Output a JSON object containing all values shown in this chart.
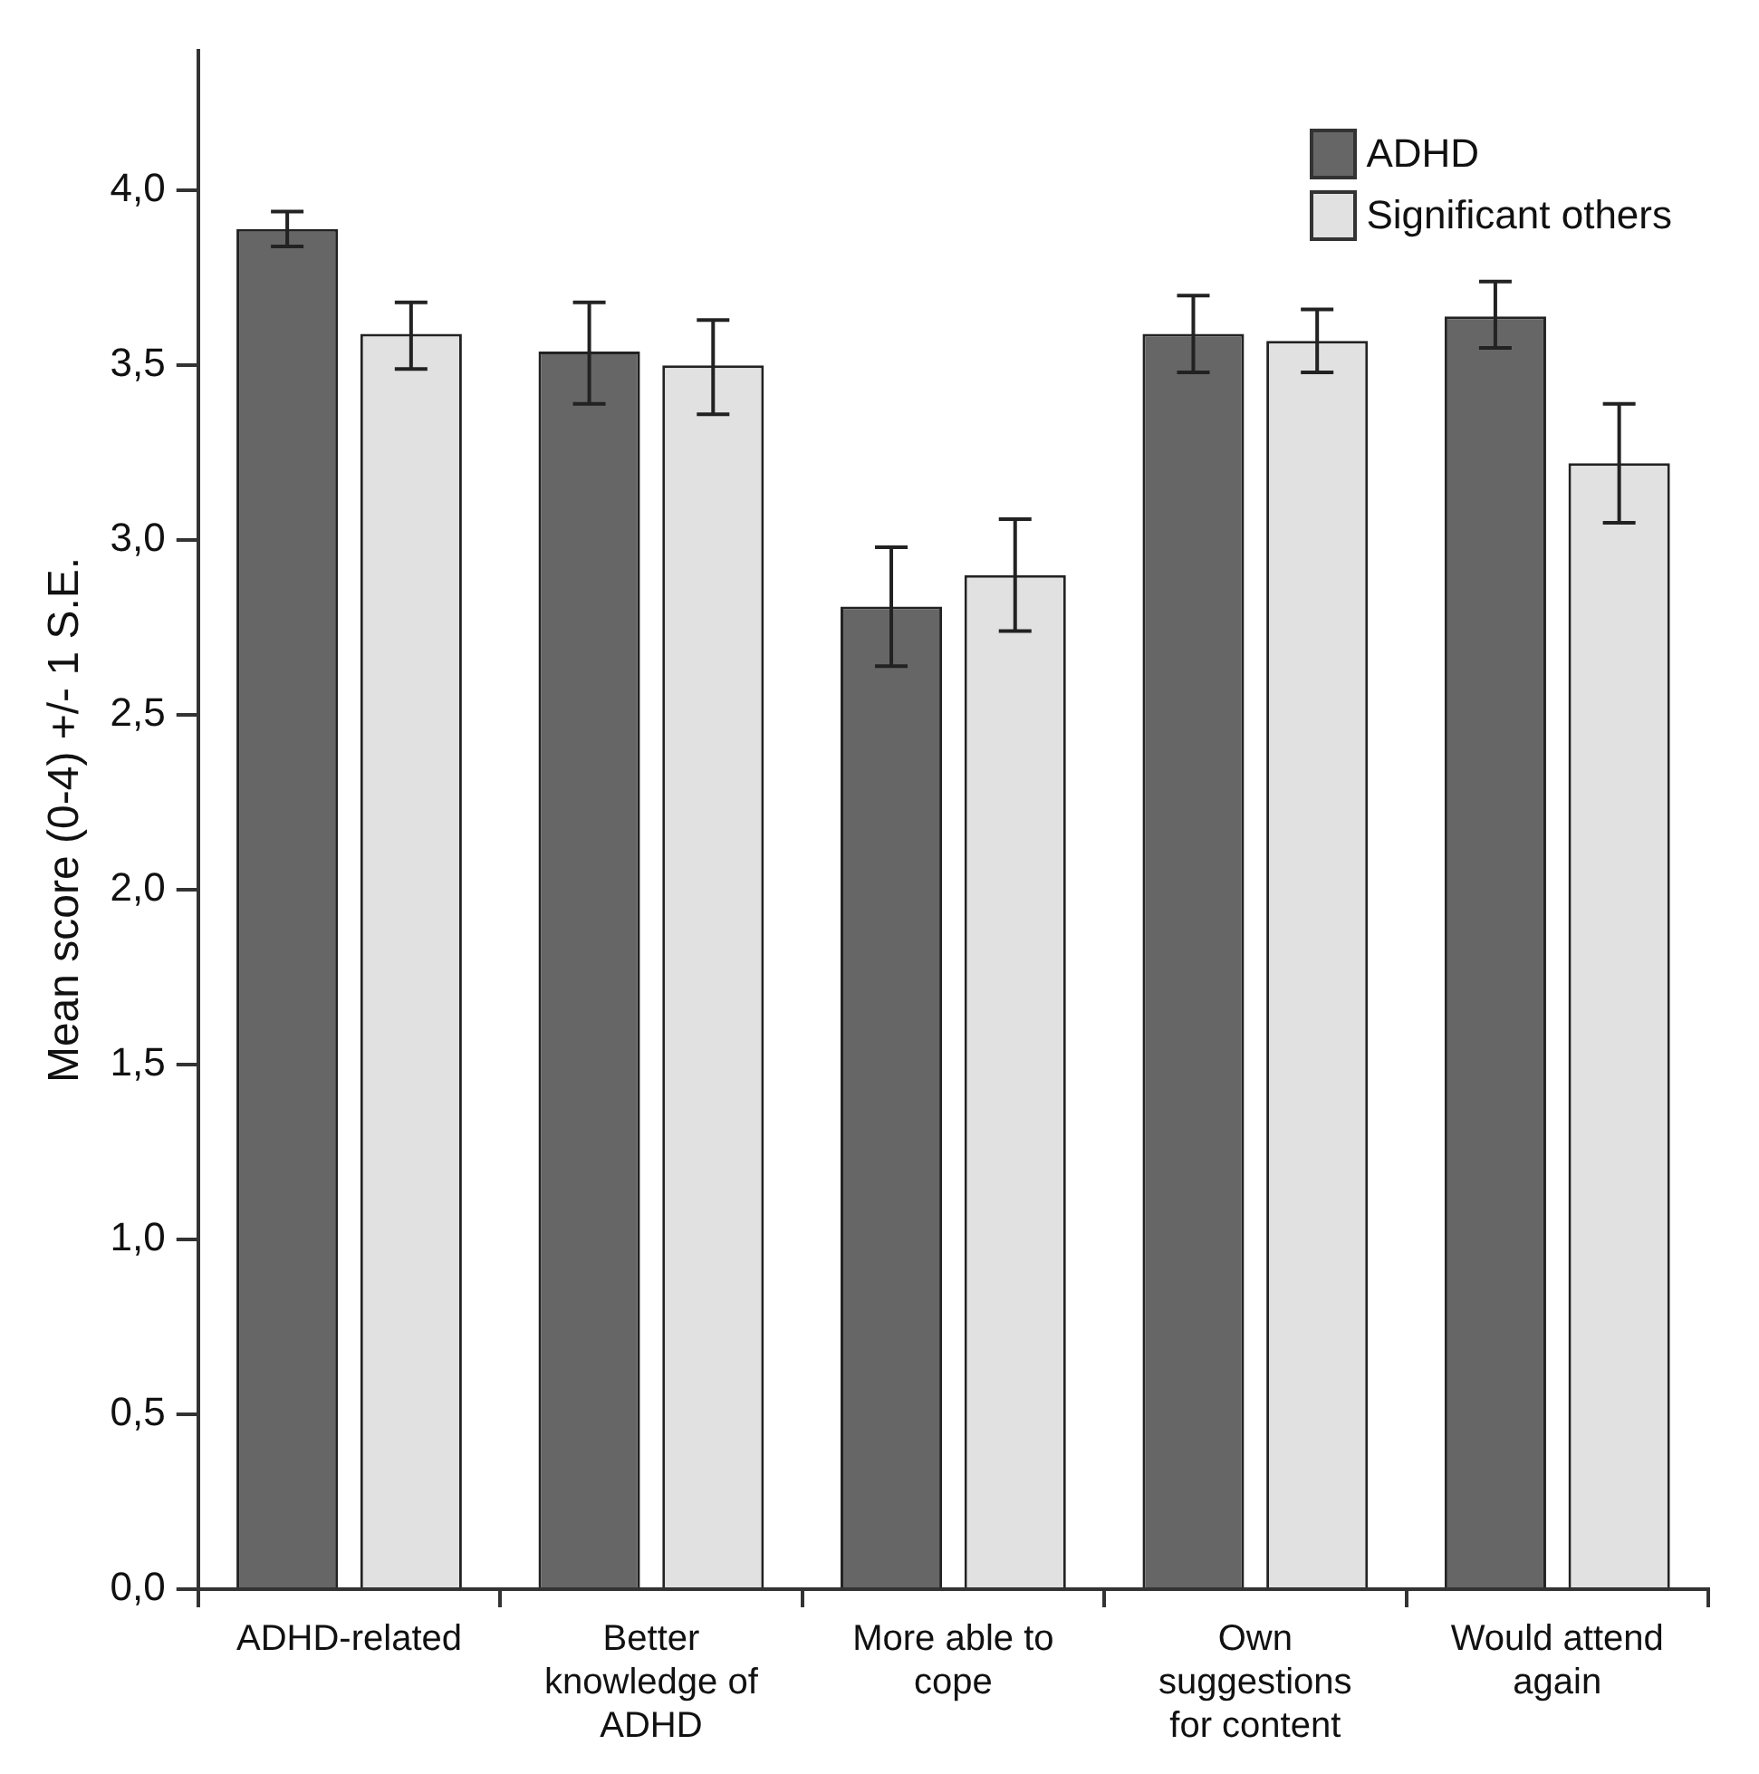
{
  "chart_data": {
    "type": "bar",
    "ylabel": "Mean score (0-4) +/- 1 S.E.",
    "categories": [
      "ADHD-related",
      "Better knowledge of ADHD",
      "More able to cope",
      "Own suggestions for content",
      "Would attend again"
    ],
    "series": [
      {
        "name": "ADHD",
        "color": "#666666",
        "values": [
          3.89,
          3.54,
          2.81,
          3.59,
          3.64
        ],
        "errors": [
          [
            3.84,
            3.94
          ],
          [
            3.39,
            3.68
          ],
          [
            2.64,
            2.98
          ],
          [
            3.48,
            3.7
          ],
          [
            3.55,
            3.74
          ]
        ]
      },
      {
        "name": "Significant others",
        "color": "#e1e1e1",
        "values": [
          3.59,
          3.5,
          2.9,
          3.57,
          3.22
        ],
        "errors": [
          [
            3.49,
            3.68
          ],
          [
            3.36,
            3.63
          ],
          [
            2.74,
            3.06
          ],
          [
            3.48,
            3.66
          ],
          [
            3.05,
            3.39
          ]
        ]
      }
    ],
    "ylim": [
      0,
      4.4
    ],
    "yticks": [
      {
        "value": 0,
        "label": "0,0"
      },
      {
        "value": 0.5,
        "label": "0,5"
      },
      {
        "value": 1,
        "label": "1,0"
      },
      {
        "value": 1.5,
        "label": "1,5"
      },
      {
        "value": 2,
        "label": "2,0"
      },
      {
        "value": 2.5,
        "label": "2,5"
      },
      {
        "value": 3,
        "label": "3,0"
      },
      {
        "value": 3.5,
        "label": "3,5"
      },
      {
        "value": 4,
        "label": "4,0"
      }
    ],
    "grid": false,
    "legend": "top right"
  }
}
